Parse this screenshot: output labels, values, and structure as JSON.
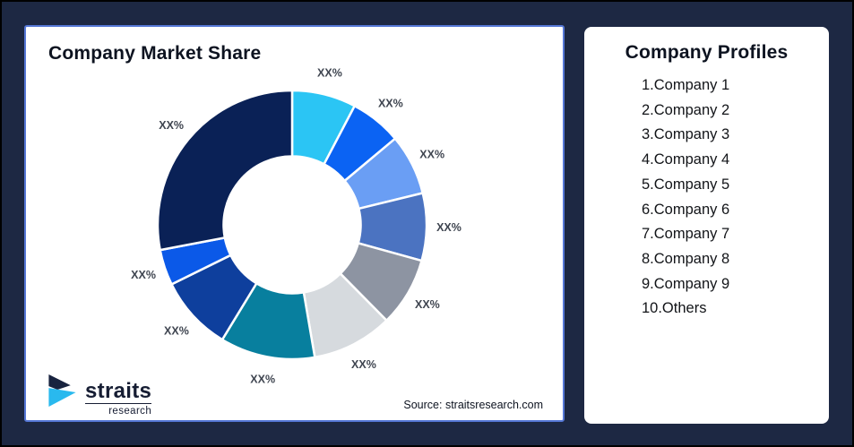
{
  "theme": {
    "page_bg": "#1d2843",
    "page_border": "#000000",
    "card_bg": "#ffffff",
    "left_card_border": "#5577d6",
    "text_primary": "#0d1320",
    "label_color": "#3f4550",
    "logo_navy": "#18233f",
    "logo_cyan": "#29b9ee",
    "logo_text": "#161d33"
  },
  "chart_data": {
    "type": "pie",
    "variant": "donut",
    "title": "Company Market Share",
    "legend_position": "none",
    "start_angle": 0,
    "inner_radius_ratio": 0.51,
    "label_radius": 175,
    "segments": [
      {
        "label": "XX%",
        "value": 7.7,
        "color": "#2bc5f4"
      },
      {
        "label": "XX%",
        "value": 6.2,
        "color": "#0b63f3"
      },
      {
        "label": "XX%",
        "value": 7.3,
        "color": "#6a9ef4"
      },
      {
        "label": "XX%",
        "value": 8.1,
        "color": "#4b73c1"
      },
      {
        "label": "XX%",
        "value": 8.3,
        "color": "#8d94a2"
      },
      {
        "label": "XX%",
        "value": 9.7,
        "color": "#d6dade"
      },
      {
        "label": "XX%",
        "value": 11.4,
        "color": "#087f9e"
      },
      {
        "label": "XX%",
        "value": 9.0,
        "color": "#0e3f9d"
      },
      {
        "label": "XX%",
        "value": 4.3,
        "color": "#0b59e8"
      },
      {
        "label": "XX%",
        "value": 28.0,
        "color": "#0a2156"
      }
    ]
  },
  "profiles": {
    "title": "Company Profiles",
    "items": [
      "1.Company 1",
      "2.Company 2",
      "3.Company 3",
      "4.Company 4",
      "5.Company 5",
      "6.Company 6",
      "7.Company 7",
      "8.Company 8",
      "9.Company 9",
      "10.Others"
    ]
  },
  "footer": {
    "source": "Source: straitsresearch.com"
  },
  "logo": {
    "name": "straits",
    "subname": "research"
  }
}
